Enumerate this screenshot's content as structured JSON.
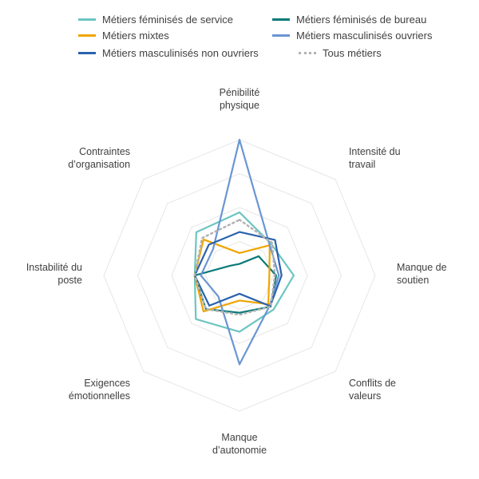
{
  "chart_data": {
    "type": "radar",
    "axes": [
      [
        "Pénibilité",
        "physique"
      ],
      [
        "Intensité du",
        "travail"
      ],
      [
        "Manque de",
        "soutien"
      ],
      [
        "Conflits de",
        "valeurs"
      ],
      [
        "Manque",
        "d’autonomie"
      ],
      [
        "Exigences",
        "émotionnelles"
      ],
      [
        "Instabilité du",
        "poste"
      ],
      [
        "Contraintes",
        "d’organisation"
      ]
    ],
    "rmax": 2,
    "grid_levels": [
      0.5,
      1.0,
      1.5,
      2.0
    ],
    "legend_position": "top",
    "series": [
      {
        "name": "Métiers féminisés de service",
        "color": "#6cc5c1",
        "dash": "solid",
        "values": [
          0.93,
          0.66,
          0.8,
          0.71,
          0.83,
          0.91,
          0.66,
          0.9
        ]
      },
      {
        "name": "Métiers féminisés de bureau",
        "color": "#0a7a7a",
        "dash": "solid",
        "values": [
          0.17,
          0.4,
          0.54,
          0.65,
          0.55,
          0.7,
          0.66,
          0.2
        ]
      },
      {
        "name": "Métiers mixtes",
        "color": "#f0a500",
        "dash": "solid",
        "values": [
          0.33,
          0.63,
          0.44,
          0.6,
          0.37,
          0.75,
          0.66,
          0.75
        ]
      },
      {
        "name": "Métiers masculinisés ouvriers",
        "color": "#6a95d3",
        "dash": "solid",
        "values": [
          2.0,
          0.63,
          0.58,
          0.63,
          1.31,
          0.44,
          0.57,
          0.55
        ]
      },
      {
        "name": "Métiers masculinisés non ouvriers",
        "color": "#2a62ae",
        "dash": "solid",
        "values": [
          0.64,
          0.74,
          0.62,
          0.64,
          0.27,
          0.63,
          0.66,
          0.64
        ]
      },
      {
        "name": "Tous métiers",
        "color": "#b3b3b3",
        "dash": "dotted",
        "values": [
          0.82,
          0.68,
          0.52,
          0.65,
          0.58,
          0.7,
          0.66,
          0.78
        ]
      }
    ]
  }
}
